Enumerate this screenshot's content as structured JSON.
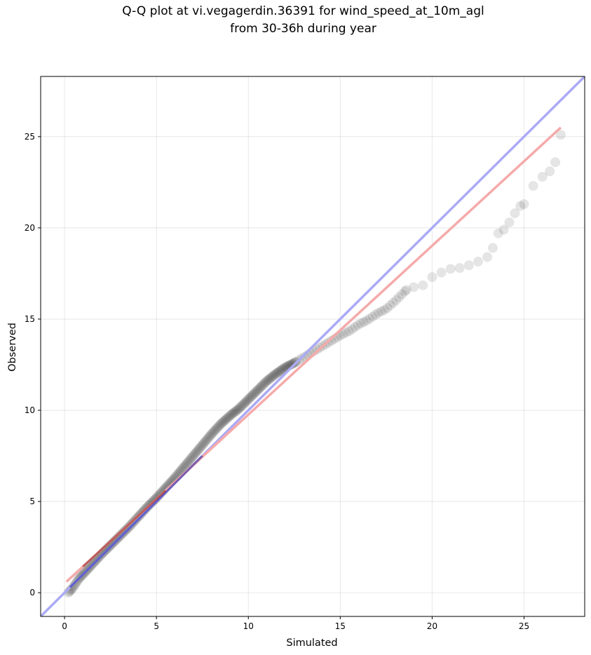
{
  "chart_data": {
    "type": "scatter",
    "title": "Q-Q plot at vi.vegagerdin.36391 for wind_speed_at_10m_agl",
    "subtitle": "from 30-36h during year",
    "xlabel": "Simulated",
    "ylabel": "Observed",
    "xlim": [
      -1.3,
      28.3
    ],
    "ylim": [
      -1.3,
      28.3
    ],
    "x_ticks": [
      0,
      5,
      10,
      15,
      20,
      25
    ],
    "y_ticks": [
      0,
      5,
      10,
      15,
      20,
      25
    ],
    "grid": true,
    "legend": "none",
    "colors": {
      "points": "#000000",
      "identity_line": "#aaaaf5",
      "fit_line": "#f5aaaa",
      "dense_blue_overlay": "#1f1fa8",
      "dense_red_overlay": "#8a1c1c"
    },
    "identity_line": {
      "x": [
        -1.3,
        28.3
      ],
      "y": [
        -1.3,
        28.3
      ]
    },
    "fit_line": {
      "x": [
        0.1,
        27.0
      ],
      "y": [
        0.6,
        25.5
      ]
    },
    "quantiles": {
      "x": [
        0.2,
        0.4,
        0.6,
        0.8,
        1.0,
        1.5,
        2.0,
        2.5,
        3.0,
        3.5,
        4.0,
        4.5,
        5.0,
        5.5,
        6.0,
        6.5,
        7.0,
        7.5,
        8.0,
        8.5,
        9.0,
        9.5,
        10.0,
        10.5,
        11.0,
        11.5,
        12.0,
        12.5,
        13.0,
        13.5,
        14.0,
        14.5,
        15.0,
        15.5,
        16.0,
        16.5,
        17.0,
        17.5,
        18.0,
        18.3,
        18.6,
        19.0,
        19.5,
        20.0,
        20.5,
        21.0,
        21.5,
        22.0,
        22.5,
        23.0,
        23.3,
        23.6,
        23.9,
        24.2,
        24.5,
        24.8,
        25.0,
        25.5,
        26.0,
        26.4,
        26.7,
        27.0
      ],
      "y": [
        0.0,
        0.2,
        0.5,
        0.8,
        1.0,
        1.55,
        2.1,
        2.6,
        3.1,
        3.6,
        4.15,
        4.7,
        5.2,
        5.75,
        6.3,
        6.9,
        7.5,
        8.1,
        8.7,
        9.25,
        9.7,
        10.1,
        10.6,
        11.1,
        11.6,
        12.0,
        12.35,
        12.6,
        12.9,
        13.2,
        13.5,
        13.8,
        14.1,
        14.35,
        14.7,
        14.95,
        15.3,
        15.55,
        16.0,
        16.3,
        16.6,
        16.75,
        16.85,
        17.3,
        17.55,
        17.75,
        17.8,
        17.95,
        18.15,
        18.4,
        18.9,
        19.7,
        19.9,
        20.3,
        20.8,
        21.2,
        21.3,
        22.3,
        22.8,
        23.1,
        23.6,
        25.1
      ]
    }
  }
}
